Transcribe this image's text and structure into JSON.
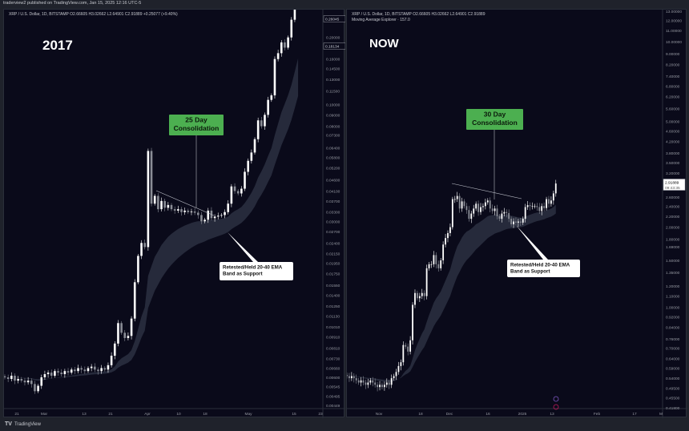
{
  "header": {
    "publisher": "traderview2 published on TradingView.com, Jan 15, 2025 12:16 UTC-5"
  },
  "footer": {
    "brand": "TradingView"
  },
  "colors": {
    "bg": "#0a0a1a",
    "up": "#ffffff",
    "down": "#8a8d96",
    "band": "#2b3042",
    "callout_green": "#4caf50"
  },
  "left": {
    "legend": "XRP / U.S. Dollar, 1D, BITSTAMP  O2.66605  H3.02662  L2.64901  C2.91889  +0.25077 (+9.40%)",
    "era_label": "2017",
    "consolidation_label": [
      "25 Day",
      "Consolidation"
    ],
    "support_label": [
      "Retested/Held 20-40 EMA",
      "Band as Support"
    ],
    "price_boxes": [
      "0.26045",
      "0.18134"
    ]
  },
  "right": {
    "legend": "XRP / U.S. Dollar, 1D, BITSTAMP  O2.66605  H3.02662  L2.64901  C2.91889",
    "legend2": "Moving Average Explorer · 157.0",
    "era_label": "NOW",
    "consolidation_label": [
      "30 Day",
      "Consolidation"
    ],
    "support_label": [
      "Retested/Held 20-40 EMA",
      "Band as Support"
    ],
    "price_box": "2.91889",
    "countdown": "09:43:35"
  },
  "chart_data": [
    {
      "type": "candlestick",
      "scale": "log",
      "grid": false,
      "ylim": [
        0.00449,
        0.28
      ],
      "x_start": "2017-02-18",
      "x_end": "2017-05-17",
      "ytick_labels": [
        "0.28000",
        "0.20000",
        "0.16000",
        "0.14500",
        "0.13000",
        "0.11500",
        "0.10000",
        "0.09000",
        "0.08000",
        "0.07300",
        "0.06400",
        "0.05800",
        "0.05200",
        "0.04600",
        "0.04100",
        "0.03700",
        "0.03300",
        "0.03000",
        "0.02700",
        "0.02400",
        "0.02150",
        "0.01950",
        "0.01750",
        "0.01550",
        "0.01400",
        "0.01250",
        "0.01130",
        "0.01010",
        "0.00910",
        "0.00810",
        "0.00730",
        "0.00660",
        "0.00600",
        "0.00545",
        "0.00495",
        "0.00449"
      ],
      "xtick_labels": [
        "21",
        "Mar",
        "13",
        "21",
        "Apr",
        "10",
        "18",
        "May",
        "15",
        "23"
      ],
      "bands": [
        "EMA 20",
        "EMA 40"
      ],
      "closes": [
        0.006,
        0.0059,
        0.0061,
        0.0058,
        0.0059,
        0.0058,
        0.0057,
        0.0058,
        0.0056,
        0.0052,
        0.0055,
        0.006,
        0.0062,
        0.0063,
        0.0061,
        0.0064,
        0.0063,
        0.0062,
        0.0064,
        0.0063,
        0.0065,
        0.0064,
        0.0066,
        0.0065,
        0.0064,
        0.0066,
        0.0067,
        0.0065,
        0.0064,
        0.0066,
        0.0065,
        0.0068,
        0.0075,
        0.0085,
        0.0105,
        0.0095,
        0.009,
        0.0092,
        0.011,
        0.016,
        0.021,
        0.024,
        0.023,
        0.062,
        0.036,
        0.039,
        0.034,
        0.037,
        0.0345,
        0.0355,
        0.034,
        0.0335,
        0.034,
        0.033,
        0.0335,
        0.033,
        0.0332,
        0.0328,
        0.032,
        0.03,
        0.0305,
        0.0335,
        0.031,
        0.0315,
        0.0318,
        0.032,
        0.033,
        0.036,
        0.043,
        0.041,
        0.04,
        0.042,
        0.05,
        0.056,
        0.061,
        0.07,
        0.085,
        0.08,
        0.09,
        0.105,
        0.11,
        0.16,
        0.17,
        0.19,
        0.18,
        0.2,
        0.24,
        0.31,
        0.36
      ]
    },
    {
      "type": "candlestick",
      "scale": "log",
      "grid": false,
      "ylim": [
        0.386,
        13
      ],
      "x_start": "2024-10-18",
      "x_end": "2025-01-15",
      "ytick_labels": [
        "13.00000",
        "12.00000",
        "11.00000",
        "10.00000",
        "9.00000",
        "8.20000",
        "7.40000",
        "6.80000",
        "6.20000",
        "5.60000",
        "5.00000",
        "4.60000",
        "4.20000",
        "3.80000",
        "3.50000",
        "3.20000",
        "2.60000",
        "2.40000",
        "2.20000",
        "2.00000",
        "1.80000",
        "1.69000",
        "1.50000",
        "1.35000",
        "1.20000",
        "1.10000",
        "1.00000",
        "0.92000",
        "0.84000",
        "0.76000",
        "0.70000",
        "0.64000",
        "0.59000",
        "0.54000",
        "0.49500",
        "0.45500",
        "0.41800",
        "0.38600"
      ],
      "xtick_labels": [
        "Nov",
        "18",
        "Dec",
        "16",
        "2025",
        "13",
        "Feb",
        "17",
        "M"
      ],
      "bands": [
        "EMA 20",
        "EMA 40"
      ],
      "closes": [
        0.55,
        0.54,
        0.55,
        0.54,
        0.53,
        0.52,
        0.53,
        0.52,
        0.51,
        0.52,
        0.53,
        0.52,
        0.51,
        0.5,
        0.51,
        0.5,
        0.51,
        0.52,
        0.51,
        0.54,
        0.55,
        0.57,
        0.6,
        0.62,
        0.72,
        0.71,
        0.68,
        0.75,
        1.02,
        1.13,
        1.08,
        1.1,
        1.13,
        1.1,
        1.4,
        1.45,
        1.45,
        1.57,
        1.45,
        1.4,
        1.5,
        1.72,
        1.82,
        1.9,
        2.0,
        2.55,
        2.55,
        2.62,
        2.35,
        2.5,
        2.4,
        2.32,
        2.15,
        2.25,
        2.35,
        2.45,
        2.28,
        2.38,
        2.4,
        2.48,
        2.52,
        2.35,
        2.3,
        2.35,
        2.2,
        2.15,
        2.25,
        2.28,
        2.26,
        2.15,
        2.05,
        2.1,
        2.08,
        2.1,
        2.08,
        2.15,
        2.38,
        2.42,
        2.4,
        2.4,
        2.4,
        2.38,
        2.3,
        2.4,
        2.36,
        2.55,
        2.45,
        2.52,
        2.68,
        2.92
      ]
    }
  ]
}
